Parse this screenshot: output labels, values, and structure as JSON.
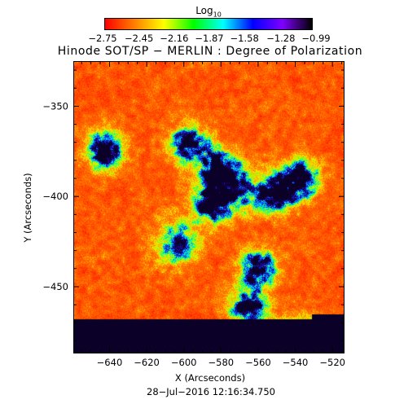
{
  "colorbar": {
    "label": "Log",
    "label_subscript": "10",
    "ticks": [
      "−2.75",
      "−2.45",
      "−2.16",
      "−1.87",
      "−1.58",
      "−1.28",
      "−0.99"
    ],
    "tick_values": [
      -2.75,
      -2.45,
      -2.16,
      -1.87,
      -1.58,
      -1.28,
      -0.99
    ],
    "colors": [
      "#ff0000",
      "#ff7f00",
      "#ffff00",
      "#00ff00",
      "#00ffff",
      "#0000ff",
      "#7f00ff",
      "#000000"
    ]
  },
  "title": "Hinode SOT/SP − MERLIN : Degree of Polarization",
  "axes": {
    "xlabel": "X (Arcseconds)",
    "ylabel": "Y (Arcseconds)",
    "x_ticks": [
      -640,
      -620,
      -600,
      -580,
      -560,
      -540,
      -520
    ],
    "x_tick_labels": [
      "−640",
      "−620",
      "−600",
      "−580",
      "−560",
      "−540",
      "−520"
    ],
    "y_ticks": [
      -350,
      -400,
      -450
    ],
    "y_tick_labels": [
      "−350",
      "−400",
      "−450"
    ],
    "xlim": [
      -659.5,
      -513.5
    ],
    "ylim": [
      -487,
      -325
    ]
  },
  "timestamp": "28−Jul−2016 12:16:34.750",
  "chart_data": {
    "type": "heatmap",
    "title": "Hinode SOT/SP − MERLIN : Degree of Polarization",
    "xlabel": "X (Arcseconds)",
    "ylabel": "Y (Arcseconds)",
    "xlim": [
      -659.5,
      -513.5
    ],
    "ylim": [
      -487,
      -325
    ],
    "value_range": [
      -2.75,
      -0.99
    ],
    "colorbar_label": "Log10",
    "grid": false,
    "features": [
      {
        "x": -643,
        "y": -374,
        "level": "high"
      },
      {
        "x": -597,
        "y": -371,
        "level": "high"
      },
      {
        "x": -581,
        "y": -385,
        "level": "high"
      },
      {
        "x": -585,
        "y": -403,
        "level": "high"
      },
      {
        "x": -572,
        "y": -396,
        "level": "mid"
      },
      {
        "x": -550,
        "y": -398,
        "level": "high"
      },
      {
        "x": -537,
        "y": -390,
        "level": "high"
      },
      {
        "x": -565,
        "y": -462,
        "level": "high"
      },
      {
        "x": -604,
        "y": -425,
        "level": "mid"
      },
      {
        "x": -560,
        "y": -440,
        "level": "high"
      },
      {
        "x": -539,
        "y": -477,
        "level": "high"
      }
    ]
  }
}
